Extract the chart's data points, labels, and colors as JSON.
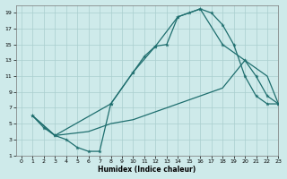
{
  "xlabel": "Humidex (Indice chaleur)",
  "xlim": [
    -0.5,
    23
  ],
  "ylim": [
    1,
    20
  ],
  "xticks": [
    0,
    1,
    2,
    3,
    4,
    5,
    6,
    7,
    8,
    9,
    10,
    11,
    12,
    13,
    14,
    15,
    16,
    17,
    18,
    19,
    20,
    21,
    22,
    23
  ],
  "yticks": [
    1,
    3,
    5,
    7,
    9,
    11,
    13,
    15,
    17,
    19
  ],
  "bg_color": "#ceeaea",
  "grid_color": "#aacece",
  "line_color": "#1e6e6e",
  "curve1_x": [
    1,
    2,
    3,
    4,
    5,
    6,
    7,
    8,
    10,
    11,
    12,
    13,
    14,
    15,
    16,
    17,
    18,
    19,
    20,
    21,
    22,
    23
  ],
  "curve1_y": [
    6,
    4.5,
    3.5,
    3,
    2,
    1.5,
    1.5,
    7.5,
    11.5,
    13.5,
    14.8,
    15,
    18.5,
    19,
    19.5,
    19,
    17.5,
    15,
    11,
    8.5,
    7.5,
    7.5
  ],
  "curve2_x": [
    1,
    3,
    8,
    10,
    12,
    14,
    16,
    18,
    20,
    21,
    22,
    23
  ],
  "curve2_y": [
    6,
    3.5,
    7.5,
    11.5,
    14.8,
    18.5,
    19.5,
    15,
    13,
    11,
    8.5,
    7.5
  ],
  "curve3_x": [
    1,
    3,
    6,
    8,
    10,
    12,
    14,
    16,
    18,
    20,
    22,
    23
  ],
  "curve3_y": [
    6,
    3.5,
    4.0,
    5.0,
    5.5,
    6.5,
    7.5,
    8.5,
    9.5,
    13,
    11,
    7.5
  ]
}
